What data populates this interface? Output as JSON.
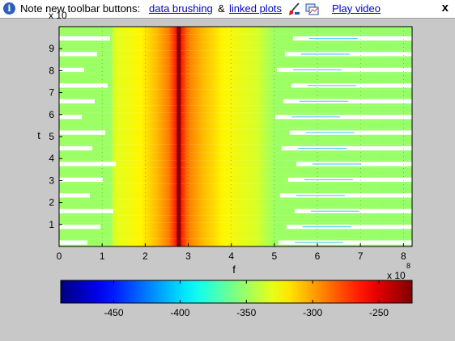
{
  "infobar": {
    "text_prefix": "Note new toolbar buttons:",
    "link_brushing": "data brushing",
    "amp": "&",
    "link_linked": "linked plots",
    "link_video": "Play video",
    "close": "x"
  },
  "icons": {
    "info": "info-icon",
    "brush": "brush-icon",
    "linked": "linked-plots-icon",
    "close": "close-icon"
  },
  "colors": {
    "background": "#c8c8c8",
    "ridge": "#800000",
    "link": "#0000cc"
  },
  "chart_data": {
    "type": "heatmap",
    "colormap": "jet",
    "xlabel": "f",
    "ylabel": "t",
    "x_multiplier_label": "x 10",
    "x_multiplier_exp": "8",
    "y_multiplier_label": "x 10",
    "xlim": [
      0,
      8.2
    ],
    "ylim": [
      0,
      10
    ],
    "xticks": [
      0,
      1,
      2,
      3,
      4,
      5,
      6,
      7,
      8
    ],
    "yticks": [
      1,
      2,
      3,
      4,
      5,
      6,
      7,
      8,
      9
    ],
    "ridge_f": 2.78,
    "clim": [
      -490,
      -225
    ],
    "colorbar_ticks": [
      -450,
      -400,
      -350,
      -300,
      -250
    ],
    "profile": [
      {
        "f": 0.0,
        "db": -350
      },
      {
        "f": 1.2,
        "db": -350
      },
      {
        "f": 1.3,
        "db": -332
      },
      {
        "f": 1.9,
        "db": -322
      },
      {
        "f": 2.3,
        "db": -305
      },
      {
        "f": 2.55,
        "db": -290
      },
      {
        "f": 2.7,
        "db": -268
      },
      {
        "f": 2.78,
        "db": -228
      },
      {
        "f": 2.86,
        "db": -268
      },
      {
        "f": 3.0,
        "db": -290
      },
      {
        "f": 3.3,
        "db": -305
      },
      {
        "f": 3.8,
        "db": -322
      },
      {
        "f": 4.6,
        "db": -335
      },
      {
        "f": 5.0,
        "db": -350
      },
      {
        "f": 8.2,
        "db": -352
      }
    ]
  }
}
